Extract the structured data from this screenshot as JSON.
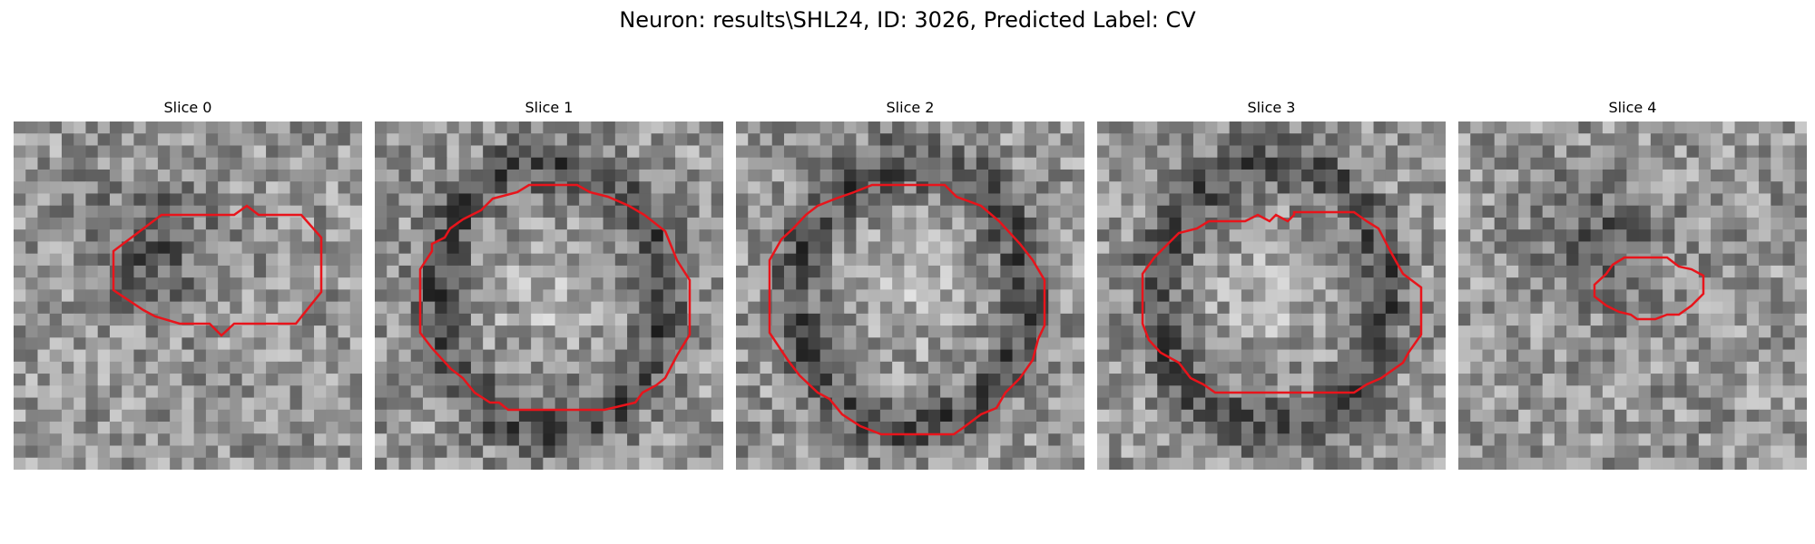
{
  "figure": {
    "title": "Neuron: results\\SHL24, ID: 3026, Predicted Label: CV",
    "contour_color": "#e8141b",
    "colormap": "grayscale"
  },
  "panels": [
    {
      "title": "Slice 0",
      "contour": "medium oval, upper-center"
    },
    {
      "title": "Slice 1",
      "contour": "large octagon"
    },
    {
      "title": "Slice 2",
      "contour": "large octagon, tall"
    },
    {
      "title": "Slice 3",
      "contour": "large octagon"
    },
    {
      "title": "Slice 4",
      "contour": "small oval, center-right"
    }
  ]
}
